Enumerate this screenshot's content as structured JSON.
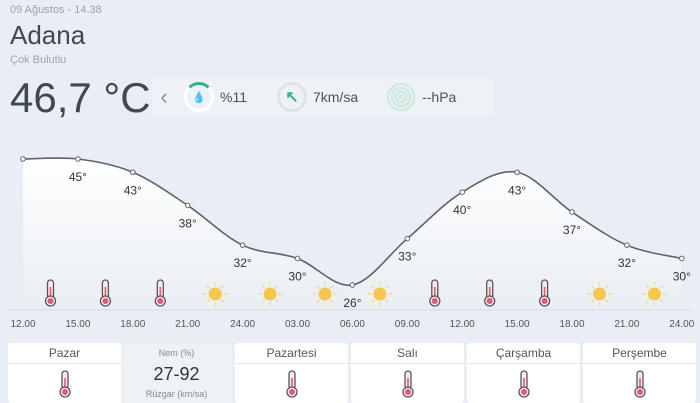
{
  "header": {
    "date": "09 Ağustos - 14.38",
    "city": "Adana",
    "condition": "Çok Bulutlu",
    "temperature": "46,7 °C"
  },
  "info": {
    "humidity": "%11",
    "humidity_fraction": 0.11,
    "wind": "7km/sa",
    "pressure": "--hPa",
    "accent": "#2bb38f"
  },
  "chart_data": {
    "type": "line",
    "x": [
      "12.00",
      "15.00",
      "18.00",
      "21.00",
      "24.00",
      "03.00",
      "06.00",
      "09.00",
      "12.00",
      "15.00",
      "18.00",
      "21.00",
      "24.00"
    ],
    "values": [
      45,
      45,
      43,
      38,
      32,
      30,
      26,
      33,
      40,
      43,
      37,
      32,
      30
    ],
    "labels": [
      "",
      "45°",
      "43°",
      "38°",
      "32°",
      "30°",
      "26°",
      "33°",
      "40°",
      "43°",
      "37°",
      "32°",
      "30°"
    ],
    "icons": [
      "thermometer",
      "thermometer",
      "thermometer",
      "sun",
      "sun",
      "sun",
      "sun",
      "thermometer",
      "thermometer",
      "thermometer",
      "sun",
      "sun"
    ]
  },
  "days": {
    "d0": {
      "name": "Pazar",
      "hum_label": "Nem (%)",
      "hum": "27-92",
      "wind_label": "Rüzgar (km/sa)"
    },
    "d1": {
      "name": "Pazartesi"
    },
    "d2": {
      "name": "Salı"
    },
    "d3": {
      "name": "Çarşamba"
    },
    "d4": {
      "name": "Perşembe"
    }
  }
}
